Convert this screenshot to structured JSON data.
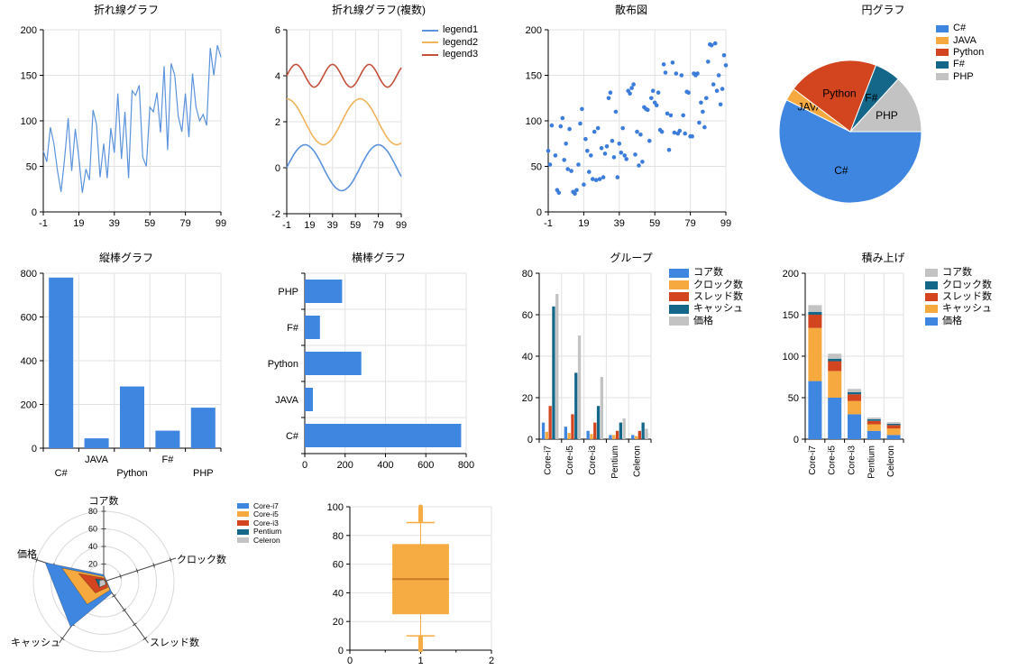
{
  "colors": {
    "palette": [
      "#3E86E0",
      "#F5A93F",
      "#D2451E",
      "#15678A",
      "#C3C3C3"
    ],
    "line_blue": "#5B93DC",
    "line_orange": "#EFB45C",
    "line_red": "#C5503C",
    "scatter_blue": "#3C7DDB",
    "grid": "#E2E2E2",
    "axis": "#000000",
    "box_fill": "#F6AC42",
    "box_median": "#C97A28",
    "radar_ring": "#D9D9D9",
    "radar_spoke": "#444444"
  },
  "chart_data": [
    {
      "type": "line",
      "title": "折れ線グラフ",
      "xlim": [
        -1,
        99
      ],
      "ylim": [
        0,
        200
      ],
      "grid": true,
      "xticks": [
        -1,
        19,
        39,
        59,
        79,
        99
      ],
      "yticks": [
        0,
        50,
        100,
        150,
        200
      ],
      "x_start": -1,
      "x_step": 2,
      "values": [
        67,
        55,
        93,
        75,
        45,
        22,
        58,
        103,
        45,
        91,
        60,
        21,
        47,
        35,
        112,
        96,
        38,
        75,
        37,
        92,
        65,
        130,
        58,
        110,
        37,
        133,
        128,
        139,
        60,
        50,
        115,
        110,
        131,
        87,
        160,
        68,
        163,
        150,
        105,
        88,
        130,
        82,
        152,
        115,
        100,
        107,
        95,
        180,
        150,
        183,
        170
      ]
    },
    {
      "type": "line",
      "title": "折れ線グラフ(複数)",
      "xlim": [
        -1,
        99
      ],
      "ylim": [
        -2,
        6
      ],
      "grid": true,
      "legend_position": "right",
      "xticks": [
        -1,
        19,
        39,
        59,
        79,
        99
      ],
      "yticks": [
        -2,
        0,
        2,
        4,
        6
      ],
      "x_start": -1,
      "x_step": 2,
      "series": [
        {
          "name": "legend1",
          "values": [
            0,
            0.2,
            0.38,
            0.56,
            0.71,
            0.83,
            0.92,
            0.98,
            1,
            0.98,
            0.92,
            0.83,
            0.71,
            0.56,
            0.38,
            0.2,
            0,
            -0.2,
            -0.38,
            -0.56,
            -0.71,
            -0.83,
            -0.92,
            -0.98,
            -1,
            -0.98,
            -0.92,
            -0.83,
            -0.71,
            -0.56,
            -0.38,
            -0.2,
            0,
            0.2,
            0.38,
            0.56,
            0.71,
            0.83,
            0.92,
            0.98,
            1,
            0.98,
            0.92,
            0.83,
            0.71,
            0.56,
            0.38,
            0.2,
            0,
            -0.2,
            -0.38
          ]
        },
        {
          "name": "legend2",
          "values": [
            3,
            2.98,
            2.92,
            2.83,
            2.71,
            2.56,
            2.38,
            2.2,
            2,
            1.8,
            1.62,
            1.44,
            1.29,
            1.17,
            1.08,
            1.02,
            1,
            1.02,
            1.08,
            1.17,
            1.29,
            1.44,
            1.62,
            1.8,
            2,
            2.2,
            2.38,
            2.56,
            2.71,
            2.83,
            2.92,
            2.98,
            3,
            2.98,
            2.92,
            2.83,
            2.71,
            2.56,
            2.38,
            2.2,
            2,
            1.8,
            1.62,
            1.44,
            1.29,
            1.17,
            1.08,
            1.02,
            1,
            1.02,
            1.08
          ]
        },
        {
          "name": "legend3",
          "values": [
            4,
            4.19,
            4.35,
            4.46,
            4.5,
            4.46,
            4.35,
            4.19,
            4,
            3.81,
            3.65,
            3.54,
            3.5,
            3.54,
            3.65,
            3.81,
            4,
            4.19,
            4.35,
            4.46,
            4.5,
            4.46,
            4.35,
            4.19,
            4,
            3.81,
            3.65,
            3.54,
            3.5,
            3.54,
            3.65,
            3.81,
            4,
            4.19,
            4.35,
            4.46,
            4.5,
            4.46,
            4.35,
            4.19,
            4,
            3.81,
            3.65,
            3.54,
            3.5,
            3.54,
            3.65,
            3.81,
            4,
            4.19,
            4.35
          ]
        }
      ]
    },
    {
      "type": "scatter",
      "title": "散布図",
      "xlim": [
        -1,
        99
      ],
      "ylim": [
        0,
        200
      ],
      "grid": true,
      "xticks": [
        -1,
        19,
        39,
        59,
        79,
        99
      ],
      "yticks": [
        0,
        50,
        100,
        150,
        200
      ],
      "points": [
        [
          -1,
          67
        ],
        [
          0,
          52
        ],
        [
          1,
          95
        ],
        [
          3,
          62
        ],
        [
          4,
          24
        ],
        [
          5,
          21
        ],
        [
          6,
          94
        ],
        [
          7,
          103
        ],
        [
          8,
          57
        ],
        [
          9,
          75
        ],
        [
          10,
          47
        ],
        [
          11,
          91
        ],
        [
          12,
          45
        ],
        [
          13,
          22
        ],
        [
          14,
          20
        ],
        [
          15,
          24
        ],
        [
          16,
          52
        ],
        [
          17,
          97
        ],
        [
          18,
          113
        ],
        [
          19,
          30
        ],
        [
          20,
          80
        ],
        [
          21,
          67
        ],
        [
          22,
          44
        ],
        [
          23,
          62
        ],
        [
          24,
          36
        ],
        [
          25,
          88
        ],
        [
          26,
          35
        ],
        [
          27,
          92
        ],
        [
          28,
          36
        ],
        [
          29,
          70
        ],
        [
          30,
          38
        ],
        [
          31,
          64
        ],
        [
          32,
          72
        ],
        [
          33,
          125
        ],
        [
          34,
          131
        ],
        [
          35,
          78
        ],
        [
          36,
          60
        ],
        [
          37,
          110
        ],
        [
          38,
          38
        ],
        [
          39,
          75
        ],
        [
          40,
          65
        ],
        [
          41,
          92
        ],
        [
          42,
          62
        ],
        [
          43,
          58
        ],
        [
          44,
          133
        ],
        [
          45,
          130
        ],
        [
          46,
          136
        ],
        [
          47,
          140
        ],
        [
          48,
          63
        ],
        [
          49,
          88
        ],
        [
          50,
          51
        ],
        [
          51,
          85
        ],
        [
          52,
          55
        ],
        [
          53,
          115
        ],
        [
          54,
          113
        ],
        [
          55,
          112
        ],
        [
          56,
          78
        ],
        [
          57,
          125
        ],
        [
          58,
          133
        ],
        [
          59,
          120
        ],
        [
          60,
          117
        ],
        [
          61,
          131
        ],
        [
          62,
          90
        ],
        [
          63,
          88
        ],
        [
          64,
          162
        ],
        [
          65,
          153
        ],
        [
          66,
          108
        ],
        [
          67,
          68
        ],
        [
          68,
          106
        ],
        [
          69,
          164
        ],
        [
          70,
          87
        ],
        [
          71,
          152
        ],
        [
          72,
          86
        ],
        [
          73,
          89
        ],
        [
          74,
          150
        ],
        [
          75,
          106
        ],
        [
          76,
          86
        ],
        [
          77,
          132
        ],
        [
          78,
          131
        ],
        [
          79,
          83
        ],
        [
          80,
          83
        ],
        [
          81,
          152
        ],
        [
          82,
          150
        ],
        [
          83,
          152
        ],
        [
          84,
          98
        ],
        [
          85,
          120
        ],
        [
          86,
          110
        ],
        [
          87,
          93
        ],
        [
          88,
          125
        ],
        [
          89,
          165
        ],
        [
          90,
          184
        ],
        [
          91,
          183
        ],
        [
          92,
          140
        ],
        [
          93,
          185
        ],
        [
          94,
          133
        ],
        [
          95,
          150
        ],
        [
          96,
          118
        ],
        [
          97,
          135
        ],
        [
          98,
          172
        ],
        [
          99,
          161
        ]
      ]
    },
    {
      "type": "pie",
      "title": "円グラフ",
      "legend_position": "right",
      "labels": [
        "C#",
        "JAVA",
        "Python",
        "F#",
        "PHP"
      ],
      "values": [
        780,
        40,
        280,
        80,
        180
      ]
    },
    {
      "type": "bar",
      "title": "縦棒グラフ",
      "categories": [
        "C#",
        "JAVA",
        "Python",
        "F#",
        "PHP"
      ],
      "values": [
        780,
        45,
        282,
        80,
        185
      ],
      "ylim": [
        0,
        800
      ],
      "yticks": [
        0,
        200,
        400,
        600,
        800
      ],
      "grid": true
    },
    {
      "type": "bar",
      "title": "横棒グラフ",
      "orientation": "horizontal",
      "categories": [
        "C#",
        "JAVA",
        "Python",
        "F#",
        "PHP"
      ],
      "values": [
        775,
        40,
        280,
        75,
        185
      ],
      "xlim": [
        0,
        800
      ],
      "xticks": [
        0,
        200,
        400,
        600,
        800
      ],
      "grid": true
    },
    {
      "type": "bar",
      "subtype": "grouped",
      "title": "グループ",
      "legend_position": "right",
      "categories": [
        "Core-i7",
        "Core-i5",
        "Core-i3",
        "Pentium",
        "Celeron"
      ],
      "series": [
        {
          "name": "コア数",
          "values": [
            8,
            6,
            4,
            2,
            2
          ]
        },
        {
          "name": "クロック数",
          "values": [
            3.5,
            3,
            2.5,
            2,
            1.5
          ]
        },
        {
          "name": "スレッド数",
          "values": [
            16,
            12,
            8,
            4,
            4
          ]
        },
        {
          "name": "キャッシュ",
          "values": [
            64,
            32,
            16,
            8,
            8
          ]
        },
        {
          "name": "価格",
          "values": [
            70,
            50,
            30,
            10,
            5
          ]
        }
      ],
      "ylim": [
        0,
        80
      ],
      "yticks": [
        0,
        20,
        40,
        60,
        80
      ],
      "grid": true
    },
    {
      "type": "bar",
      "subtype": "stacked",
      "title": "積み上げ",
      "legend_position": "right",
      "categories": [
        "Core-i7",
        "Core-i5",
        "Core-i3",
        "Pentium",
        "Celeron"
      ],
      "series": [
        {
          "name": "価格",
          "values": [
            70,
            50,
            30,
            10,
            5
          ]
        },
        {
          "name": "キャッシュ",
          "values": [
            64,
            32,
            16,
            8,
            8
          ]
        },
        {
          "name": "スレッド数",
          "values": [
            16,
            12,
            8,
            4,
            4
          ]
        },
        {
          "name": "クロック数",
          "values": [
            3.5,
            3,
            2.5,
            2,
            1.5
          ]
        },
        {
          "name": "コア数",
          "values": [
            8,
            6,
            4,
            2,
            2
          ]
        }
      ],
      "legend": [
        "コア数",
        "クロック数",
        "スレッド数",
        "キャッシュ",
        "価格"
      ],
      "ylim": [
        0,
        200
      ],
      "yticks": [
        0,
        50,
        100,
        150,
        200
      ],
      "grid": true
    },
    {
      "type": "radar",
      "title": "",
      "legend_position": "right",
      "axes": [
        "コア数",
        "クロック数",
        "スレッド数",
        "キャッシュ",
        "価格"
      ],
      "rmax": 80,
      "rticks": [
        20,
        40,
        60,
        80
      ],
      "series": [
        {
          "name": "Core-i7",
          "values": [
            8,
            3.5,
            16,
            64,
            70
          ]
        },
        {
          "name": "Core-i5",
          "values": [
            6,
            3,
            12,
            32,
            50
          ]
        },
        {
          "name": "Core-i3",
          "values": [
            4,
            2.5,
            8,
            16,
            30
          ]
        },
        {
          "name": "Pentium",
          "values": [
            2,
            2,
            4,
            8,
            10
          ]
        },
        {
          "name": "Celeron",
          "values": [
            2,
            1.5,
            4,
            8,
            5
          ]
        }
      ]
    },
    {
      "type": "box",
      "title": "",
      "xlim": [
        0,
        2
      ],
      "xticks": [
        0,
        1,
        2
      ],
      "minor_xticks": [
        0.5,
        1.5
      ],
      "ylim": [
        0,
        100
      ],
      "yticks": [
        0,
        20,
        40,
        60,
        80,
        100
      ],
      "grid": true,
      "box": {
        "x": 1,
        "q1": 25,
        "median": 49.5,
        "q3": 74,
        "lower_cap": 10,
        "upper_cap": 89,
        "lower_outlier_range": [
          0,
          9
        ],
        "upper_outlier_range": [
          90,
          100
        ]
      }
    }
  ]
}
